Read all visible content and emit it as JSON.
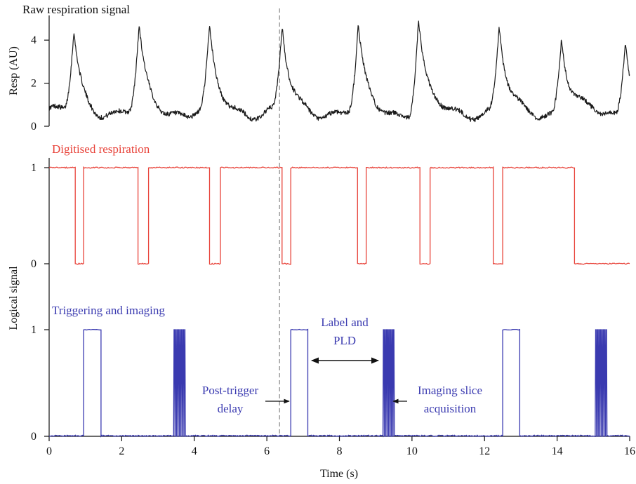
{
  "chart_data": {
    "type": "line",
    "xlabel": "Time (s)",
    "xlim": [
      0,
      16
    ],
    "xticks": [
      "0",
      "2",
      "4",
      "6",
      "8",
      "10",
      "12",
      "14",
      "16"
    ],
    "shared_ylabel": "Logical signal",
    "trigger_line_x": 6.35,
    "panels": [
      {
        "id": "raw",
        "title": "Raw respiration signal",
        "ylabel": "Resp (AU)",
        "ylim": [
          0,
          5
        ],
        "yticks": [
          "0",
          "2",
          "4"
        ],
        "color": "#1a1a1a",
        "baseline": 0.7,
        "peaks": [
          {
            "t": 0.68,
            "h": 4.25
          },
          {
            "t": 2.48,
            "h": 4.45
          },
          {
            "t": 4.42,
            "h": 4.35
          },
          {
            "t": 6.42,
            "h": 4.55
          },
          {
            "t": 8.52,
            "h": 4.45
          },
          {
            "t": 10.18,
            "h": 4.95
          },
          {
            "t": 12.4,
            "h": 4.55
          },
          {
            "t": 14.12,
            "h": 4.15
          },
          {
            "t": 15.88,
            "h": 4.25
          }
        ]
      },
      {
        "id": "digitised",
        "title": "Digitised respiration",
        "yticks": [
          "0",
          "1"
        ],
        "color": "#e8433a",
        "low_intervals": [
          [
            0.72,
            0.95
          ],
          [
            2.45,
            2.74
          ],
          [
            4.42,
            4.72
          ],
          [
            6.42,
            6.66
          ],
          [
            8.5,
            8.74
          ],
          [
            10.22,
            10.5
          ],
          [
            12.24,
            12.5
          ],
          [
            14.48,
            16.0
          ]
        ]
      },
      {
        "id": "triggering",
        "title": "Triggering and imaging",
        "yticks": [
          "0",
          "1"
        ],
        "color": "#3a3ab0",
        "label_pulses": [
          [
            0.95,
            1.43
          ],
          [
            6.66,
            7.13
          ],
          [
            12.5,
            12.97
          ]
        ],
        "imaging_bursts": [
          [
            3.43,
            3.76
          ],
          [
            9.2,
            9.52
          ],
          [
            15.05,
            15.38
          ]
        ],
        "burst_spikes": 8
      }
    ],
    "annotations": {
      "post_trigger": [
        "Post-trigger",
        "delay"
      ],
      "label_pld": [
        "Label and",
        "PLD"
      ],
      "imaging_slice": [
        "Imaging slice",
        "acquisition"
      ]
    }
  }
}
